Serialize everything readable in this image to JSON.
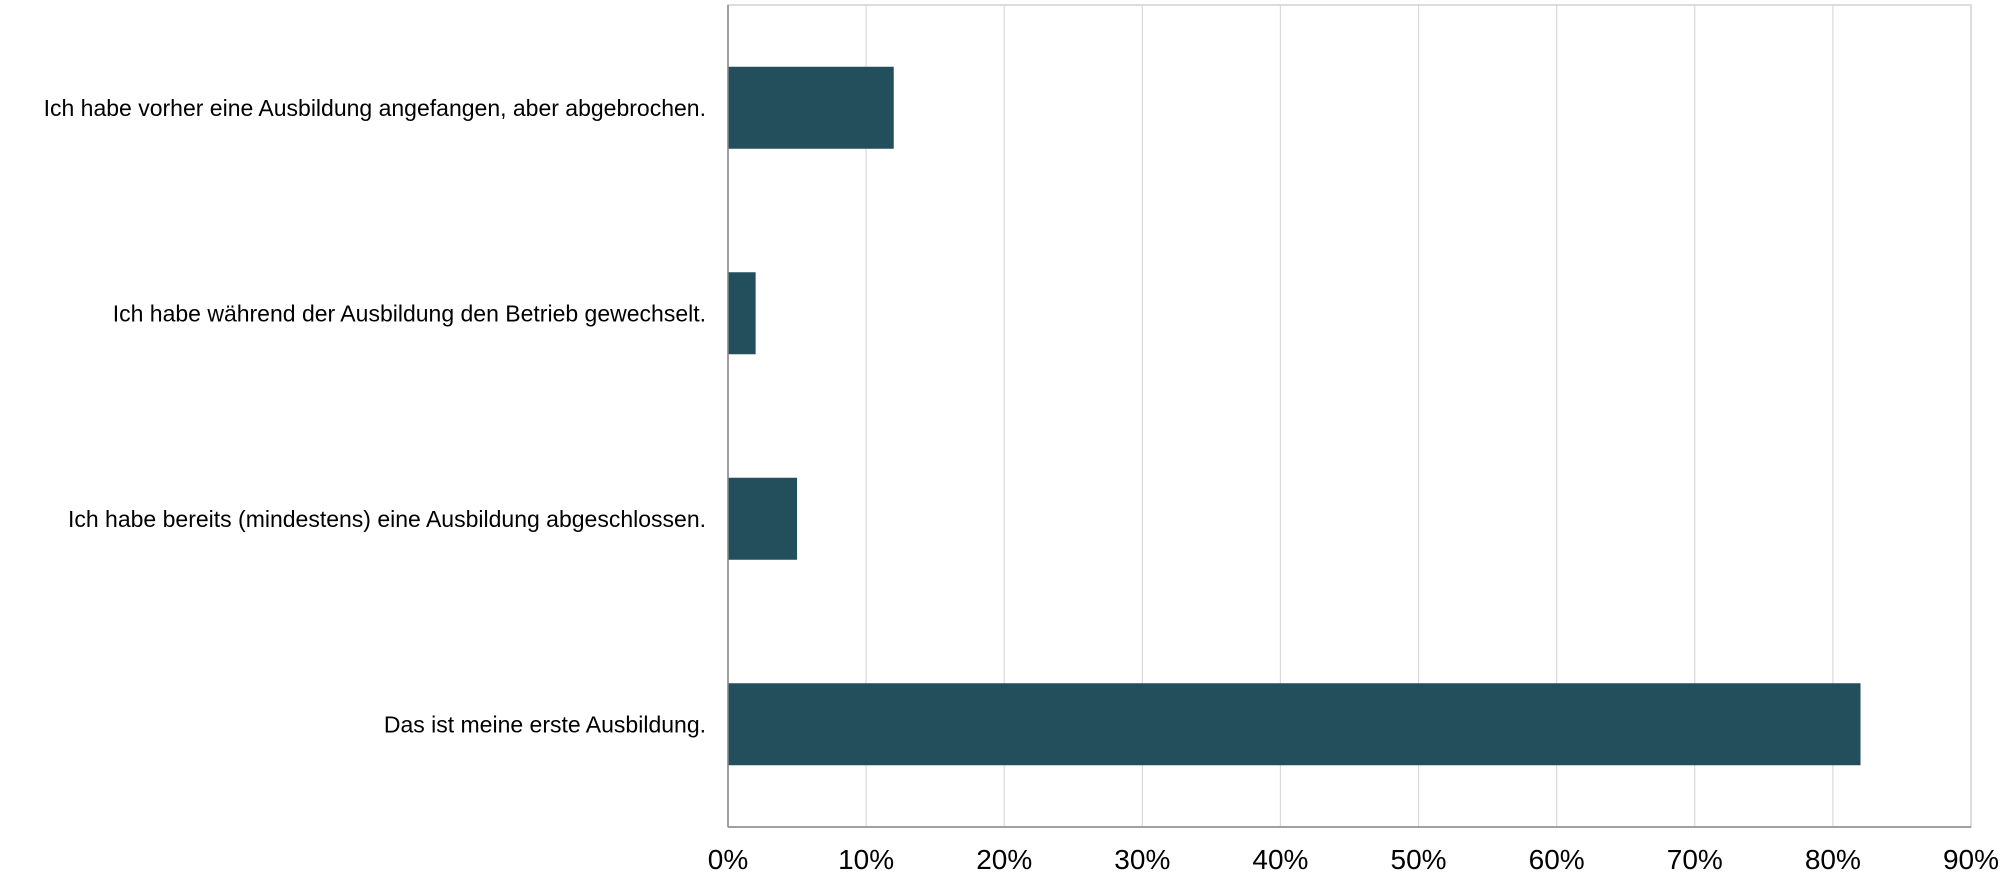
{
  "chart_data": {
    "type": "bar",
    "orientation": "horizontal",
    "title": "",
    "xlabel": "",
    "ylabel": "",
    "categories": [
      "Ich habe vorher eine Ausbildung angefangen, aber abgebrochen.",
      "Ich habe während der Ausbildung den Betrieb gewechselt.",
      "Ich habe bereits (mindestens) eine Ausbildung abgeschlossen.",
      "Das ist meine erste Ausbildung."
    ],
    "values": [
      12,
      2,
      5,
      82
    ],
    "xlim": [
      0,
      90
    ],
    "xticks": [
      0,
      10,
      20,
      30,
      40,
      50,
      60,
      70,
      80,
      90
    ],
    "xtick_labels": [
      "0%",
      "10%",
      "20%",
      "30%",
      "40%",
      "50%",
      "60%",
      "70%",
      "80%",
      "90%"
    ],
    "grid": "vertical",
    "legend": "none",
    "bar_color": "#234e5b"
  }
}
